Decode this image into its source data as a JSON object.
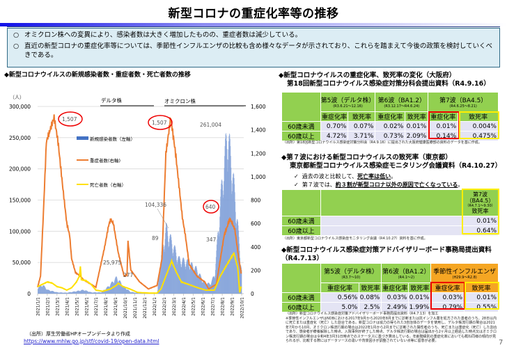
{
  "title": "新型コロナの重症化率等の推移",
  "info": {
    "bullet": "○",
    "items": [
      "オミクロン株への変異により、感染者数は大きく増加したものの、重症者数は減少している。",
      "直近の新型コロナの重症化率等については、季節性インフルエンザの比較も含め様々なデータが示されており、これらを踏まえて今後の政策を検討していくべきである。"
    ]
  },
  "left": {
    "heading": "◆新型コロナウイルスの新規感染者数・重症者数・死亡者数の推移",
    "source": "（出所）厚生労働省HPオープンデータより作成",
    "link": "https://www.mhlw.go.jp/stf/covid-19/open-data.html"
  },
  "chart_data": {
    "type": "bar+line",
    "y_unit": "（人）",
    "left_ylim": [
      0,
      300000
    ],
    "right_ylim": [
      0,
      1600
    ],
    "left_ticks": [
      "300,000",
      "250,000",
      "200,000",
      "150,000",
      "100,000",
      "50,000",
      "0"
    ],
    "right_ticks": [
      "1,600",
      "1,400",
      "1,200",
      "1,000",
      "800",
      "600",
      "400",
      "200",
      "0"
    ],
    "x_ticks": [
      "2021/1/1",
      "2021/2/1",
      "2021/3/1",
      "2021/4/1",
      "2021/5/1",
      "2021/6/1",
      "2021/7/1",
      "2021/8/1",
      "2021/9/1",
      "2021/10/1",
      "2021/11/1",
      "2021/12/1",
      "2022/1/1",
      "2022/2/1",
      "2022/3/1",
      "2022/4/1",
      "2022/5/1",
      "2022/6/1",
      "2022/7/1",
      "2022/8/1",
      "2022/9/1",
      "2022/10/1"
    ],
    "periods": [
      {
        "label": "デルタ株"
      },
      {
        "label": "オミクロン株"
      }
    ],
    "legend": [
      "新規感染者数（左軸）",
      "重症者数(右軸)",
      "死亡者数（右軸）"
    ],
    "colors": {
      "infections": "#7f9fd8",
      "severe": "#ed7d31",
      "deaths": "#ffe000"
    },
    "x_month_index_note": "x values are months since 2021/1/1",
    "series": [
      {
        "name": "新規感染者数（左軸）",
        "axis": "left",
        "type": "bar",
        "points": [
          [
            0,
            10000
          ],
          [
            0.5,
            14000
          ],
          [
            1,
            6000
          ],
          [
            2,
            2000
          ],
          [
            3,
            1500
          ],
          [
            4,
            4000
          ],
          [
            4.7,
            6000
          ],
          [
            5.5,
            2000
          ],
          [
            6.5,
            2000
          ],
          [
            7.3,
            12000
          ],
          [
            8.1,
            25975
          ],
          [
            8.8,
            12000
          ],
          [
            9.5,
            3000
          ],
          [
            10.5,
            500
          ],
          [
            11.5,
            500
          ],
          [
            12.3,
            2000
          ],
          [
            12.7,
            60000
          ],
          [
            13.2,
            104336
          ],
          [
            13.7,
            85000
          ],
          [
            14.5,
            55000
          ],
          [
            15.5,
            50000
          ],
          [
            16.3,
            40000
          ],
          [
            17,
            20000
          ],
          [
            17.7,
            15000
          ],
          [
            18.2,
            30000
          ],
          [
            18.8,
            150000
          ],
          [
            19.5,
            261004
          ],
          [
            20,
            200000
          ],
          [
            20.5,
            120000
          ],
          [
            21,
            30000
          ]
        ]
      },
      {
        "name": "重症者数(右軸)",
        "axis": "right",
        "type": "line",
        "points": [
          [
            0,
            55
          ],
          [
            0.3,
            150
          ],
          [
            0.6,
            700
          ],
          [
            0.9,
            1300
          ],
          [
            1.7,
            1507
          ],
          [
            2.1,
            1300
          ],
          [
            2.6,
            900
          ],
          [
            3.0,
            600
          ],
          [
            3.3,
            500
          ],
          [
            3.5,
            300
          ],
          [
            3.9,
            180
          ],
          [
            4.4,
            150
          ],
          [
            4.7,
            120
          ],
          [
            6.0,
            55
          ],
          [
            6.9,
            400
          ],
          [
            7.3,
            580
          ],
          [
            7.5,
            630
          ],
          [
            7.8,
            600
          ],
          [
            8.3,
            350
          ],
          [
            8.9,
            150
          ],
          [
            9.2,
            160
          ],
          [
            9.3,
            450
          ],
          [
            9.6,
            200
          ],
          [
            10.5,
            100
          ],
          [
            11.4,
            40
          ],
          [
            12.3,
            70
          ],
          [
            12.8,
            300
          ],
          [
            13.2,
            1200
          ],
          [
            13.7,
            1507
          ],
          [
            14.2,
            1200
          ],
          [
            14.9,
            650
          ],
          [
            15.2,
            500
          ],
          [
            15.6,
            250
          ],
          [
            16.4,
            150
          ],
          [
            17.2,
            100
          ],
          [
            17.6,
            40
          ],
          [
            18.4,
            80
          ],
          [
            19.2,
            500
          ],
          [
            19.8,
            640
          ],
          [
            20.3,
            550
          ],
          [
            20.7,
            300
          ],
          [
            21,
            150
          ]
        ]
      },
      {
        "name": "死亡者数（右軸）",
        "axis": "right",
        "type": "line",
        "points": [
          [
            0,
            60
          ],
          [
            0.5,
            80
          ],
          [
            1,
            100
          ],
          [
            1.5,
            90
          ],
          [
            2,
            60
          ],
          [
            2.5,
            50
          ],
          [
            3,
            30
          ],
          [
            3.5,
            50
          ],
          [
            4,
            100
          ],
          [
            4.3,
            150
          ],
          [
            4.4,
            230
          ],
          [
            4.5,
            120
          ],
          [
            5,
            110
          ],
          [
            5.5,
            80
          ],
          [
            6,
            30
          ],
          [
            6.7,
            20
          ],
          [
            7.5,
            40
          ],
          [
            8.1,
            70
          ],
          [
            8.3,
            89
          ],
          [
            8.8,
            60
          ],
          [
            9.5,
            40
          ],
          [
            10.3,
            10
          ],
          [
            11.5,
            5
          ],
          [
            12.3,
            5
          ],
          [
            12.7,
            40
          ],
          [
            13.2,
            150
          ],
          [
            13.8,
            277
          ],
          [
            14.3,
            180
          ],
          [
            14.8,
            100
          ],
          [
            15.5,
            80
          ],
          [
            16.5,
            50
          ],
          [
            17.3,
            30
          ],
          [
            18.2,
            30
          ],
          [
            18.8,
            150
          ],
          [
            19.5,
            250
          ],
          [
            20.2,
            347
          ],
          [
            20.6,
            220
          ],
          [
            20.8,
            10
          ],
          [
            21,
            80
          ]
        ]
      }
    ],
    "annotations": [
      "1,507",
      "1,507",
      "640",
      "261,004",
      "104,336",
      "25,975",
      "277",
      "89",
      "347"
    ]
  },
  "t1": {
    "heading1": "◆新型コロナウイルスの重症化率、致死率の変化（大阪府）",
    "heading2": "第18回新型コロナウイルス感染症対策分科会提出資料（R4.9.16）",
    "waves": [
      {
        "name": "第5波（デルタ株）",
        "period": "(R3.6.21～12.16)"
      },
      {
        "name": "第6波（BA1.2）",
        "period": "(R3.12.17～R4.6.24)"
      },
      {
        "name": "第7波（BA4.5）",
        "period": "(R4.6.25～8.21)"
      }
    ],
    "cols": [
      "重症化率",
      "致死率",
      "重症化率",
      "致死率",
      "重症化率",
      "致死率"
    ],
    "rows": [
      {
        "label": "60歳未満",
        "vals": [
          "0.70%",
          "0.07%",
          "0.02%",
          "0.01%",
          "0.01%",
          "0.004%"
        ]
      },
      {
        "label": "60歳以上",
        "vals": [
          "4.72%",
          "3.71%",
          "0.73%",
          "2.09%",
          "0.14%",
          "0.475%"
        ]
      }
    ],
    "source": "（出所）第18回新型コロナウイルス感染症対策分科会（R4.9.16）に提出された大阪府健康医療部の資料のデータを基に作成。"
  },
  "t2": {
    "heading1": "◆第７波における新型コロナウイルスの致死率（東京都）",
    "heading2": "東京都新型コロナウイルス感染症モニタリング会議資料（R4.10.27）",
    "check": "✓",
    "notes": [
      {
        "pre": "過去の波と比較して、",
        "em": "死亡率は低い",
        "post": "。"
      },
      {
        "pre": "第７波では、",
        "em": "約３割が新型コロナ以外の原因で亡くなっている",
        "post": "。"
      }
    ],
    "wave": "第7波",
    "variant": "（BA4.5）",
    "period": "（R4.7.1～9.30）",
    "col": "致死率",
    "rows": [
      {
        "label": "60歳未満",
        "val": "0.01%"
      },
      {
        "label": "60歳以上",
        "val": "0.64%"
      }
    ],
    "source": "（出所）東京都新型コロナウイルス感染症モニタリング会議（R4.10.27）資料を基に作成。"
  },
  "t3": {
    "heading1": "◆新型コロナウイルス感染症対策アドバイザリーボード事務局提出資料",
    "heading2": "（R4.7.13）",
    "groups": [
      {
        "name": "第5波（デルタ株）",
        "period": "(R3.7～10)"
      },
      {
        "name": "第6波（BA1.2）",
        "period": "(R4.1～2)"
      },
      {
        "name": "季節性インフルエンザ",
        "period": "(H29.9～R2.8)"
      }
    ],
    "cols": [
      "重症化率",
      "致死率",
      "重症化率",
      "致死率",
      "重症化率",
      "致死率"
    ],
    "rows": [
      {
        "label": "60歳未満",
        "vals": [
          "0.56%",
          "0.08%",
          "0.03%",
          "0.01%",
          "0.03%",
          "0.01%"
        ]
      },
      {
        "label": "60歳以上",
        "vals": [
          "5.0%",
          "2.5%",
          "2.49%",
          "1.99%",
          "0.79%",
          "0.55%"
        ]
      }
    ],
    "source": "（出所）新型コロナウイルス感染症対策アドバイザリーボード事務局提出資料（R4.7.13）を加工",
    "note": "※季節性インフルエンザはNDBにおける2017年9月から2020年8月までに診断または抗インフル薬を処方された患者のうち、28日以内に死亡または重症化（死亡）した割合である。新型コロナは協力の得られた3自治体のデータを使用し、デルタ株流行期の場合は2021年7月から10月、オミクロン株流行期の場合は2022年1月から2月までに診断された陽性者のうち、死亡または重症化（死亡）した割合であり、感染者が療養解除した時点、入院事例が終了した時点、デルタ株流行期の場合は届出から2ヶ月以上経過した時点又はオミクロン株流行期の場合は令和4年3月31日時点でのステータスに基づき算出している。年齢階級別の重症化率においても概ね同様の傾向が見られるが、比較する際にはデータソースの違いや背景因子が調整されていない点等に留意が必要。"
  },
  "page_number": "7"
}
